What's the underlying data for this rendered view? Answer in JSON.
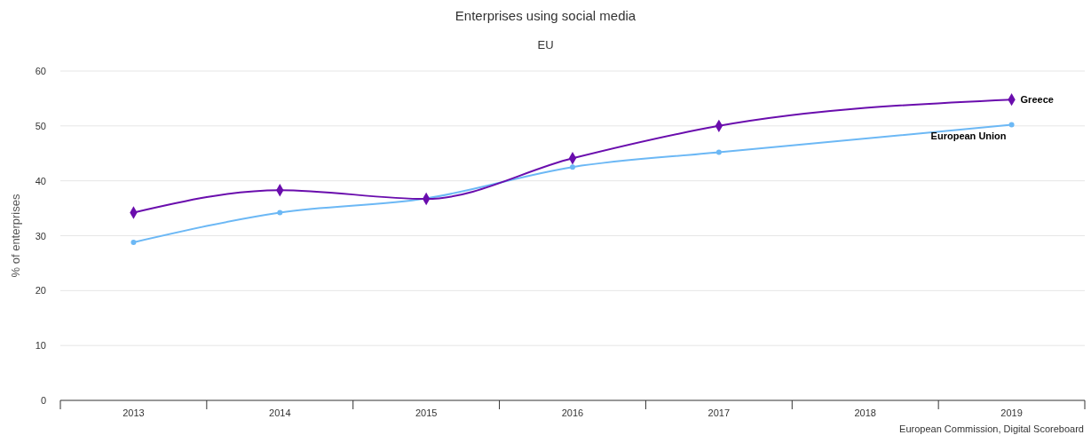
{
  "chart_data": {
    "type": "line",
    "title": "Enterprises using social media",
    "subtitle": "EU",
    "ylabel": "% of enterprises",
    "categories": [
      "2013",
      "2014",
      "2015",
      "2016",
      "2017",
      "2018",
      "2019"
    ],
    "series": [
      {
        "name": "Greece",
        "color": "#6a0dad",
        "marker": "diamond",
        "values": [
          34.2,
          38.3,
          36.7,
          44.1,
          50.0,
          null,
          54.8
        ]
      },
      {
        "name": "European Union",
        "color": "#6cb8f5",
        "marker": "circle",
        "values": [
          28.8,
          34.2,
          36.8,
          42.5,
          45.2,
          null,
          50.2
        ]
      }
    ],
    "ylim": [
      0,
      60
    ],
    "yticks": [
      0,
      10,
      20,
      30,
      40,
      50,
      60
    ],
    "grid": "y",
    "annotations": [
      "European Commission, Digital Scoreboard"
    ]
  }
}
